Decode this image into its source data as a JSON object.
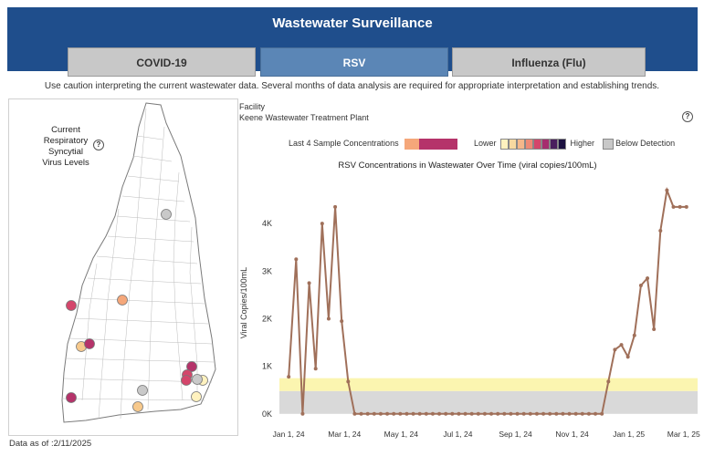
{
  "header": {
    "title": "Wastewater Surveillance",
    "tabs": [
      {
        "label": "COVID-19",
        "active": false
      },
      {
        "label": "RSV",
        "active": true
      },
      {
        "label": "Influenza (Flu)",
        "active": false
      }
    ]
  },
  "notice": "Use caution interpreting the current wastewater data.  Several months of data analysis are required for appropriate interpretation and establishing trends.",
  "map": {
    "title_lines": [
      "Current",
      "Respiratory",
      "Syncytial",
      "Virus Levels"
    ],
    "help_icon": "?",
    "data_as_of": "Data as of :2/11/2025",
    "sites": [
      {
        "color": "#c9c9c9"
      },
      {
        "color": "#f5a77a"
      },
      {
        "color": "#d4466b"
      },
      {
        "color": "#f7c98c"
      },
      {
        "color": "#b5336a"
      },
      {
        "color": "#b5336a"
      },
      {
        "color": "#d4466b"
      },
      {
        "color": "#d4466b"
      },
      {
        "color": "#fff2bf"
      },
      {
        "color": "#c9c9c9"
      },
      {
        "color": "#c9c9c9"
      },
      {
        "color": "#fff2bf"
      },
      {
        "color": "#f7c98c"
      },
      {
        "color": "#b5336a"
      }
    ]
  },
  "facility": {
    "label": "Facility",
    "name": "Keene Wastewater Treatment Plant"
  },
  "legend": {
    "last4_label": "Last 4 Sample Concentrations",
    "last4_colors": [
      "#f5a77a",
      "#b5336a",
      "#b5336a",
      "#b5336a"
    ],
    "lower_label": "Lower",
    "higher_label": "Higher",
    "scale_colors": [
      "#fff2bf",
      "#f7d9a0",
      "#f5b78a",
      "#ee8a75",
      "#d4466b",
      "#a62d6e",
      "#4a1f5e",
      "#1c1140"
    ],
    "below_detection_label": "Below Detection",
    "below_detection_color": "#c8c8c8"
  },
  "chart_data": {
    "type": "line",
    "title": "RSV Concentrations in Wastewater Over Time (viral copies/100mL)",
    "ylabel": "Viral Copies/100mL",
    "xlabel": "",
    "ylim": [
      -100,
      5000
    ],
    "yticks": [
      {
        "value": 0,
        "label": "0K"
      },
      {
        "value": 1000,
        "label": "1K"
      },
      {
        "value": 2000,
        "label": "2K"
      },
      {
        "value": 3000,
        "label": "3K"
      },
      {
        "value": 4000,
        "label": "4K"
      }
    ],
    "xlim_days": [
      -10,
      440
    ],
    "xticks": [
      {
        "day": 0,
        "label": "Jan 1, 24"
      },
      {
        "day": 60,
        "label": "Mar 1, 24"
      },
      {
        "day": 121,
        "label": "May 1, 24"
      },
      {
        "day": 182,
        "label": "Jul 1, 24"
      },
      {
        "day": 244,
        "label": "Sep 1, 24"
      },
      {
        "day": 305,
        "label": "Nov 1, 24"
      },
      {
        "day": 366,
        "label": "Jan 1, 25"
      },
      {
        "day": 425,
        "label": "Mar 1, 25"
      }
    ],
    "bands": [
      {
        "name": "Below Detection",
        "from": 0,
        "to": 480,
        "color": "#d9d9d9"
      },
      {
        "name": "Low",
        "from": 480,
        "to": 750,
        "color": "#fbf5b0"
      }
    ],
    "line_color": "#a0705a",
    "series": [
      {
        "name": "Keene WWTP",
        "x": [
          0,
          8,
          15,
          22,
          29,
          36,
          43,
          50,
          57,
          64,
          71,
          78,
          85,
          92,
          99,
          106,
          113,
          120,
          127,
          134,
          141,
          148,
          155,
          162,
          169,
          176,
          183,
          190,
          197,
          204,
          211,
          218,
          225,
          232,
          239,
          246,
          253,
          260,
          267,
          274,
          281,
          288,
          295,
          302,
          309,
          316,
          323,
          330,
          337,
          344,
          351,
          358,
          365,
          372,
          379,
          386,
          393,
          400,
          407,
          414,
          421,
          428
        ],
        "y": [
          780,
          3250,
          0,
          2750,
          950,
          4000,
          2000,
          4350,
          1950,
          680,
          0,
          0,
          0,
          0,
          0,
          0,
          0,
          0,
          0,
          0,
          0,
          0,
          0,
          0,
          0,
          0,
          0,
          0,
          0,
          0,
          0,
          0,
          0,
          0,
          0,
          0,
          0,
          0,
          0,
          0,
          0,
          0,
          0,
          0,
          0,
          0,
          0,
          0,
          0,
          680,
          1350,
          1450,
          1200,
          1650,
          2700,
          2850,
          1780,
          3850,
          4700,
          4350,
          4350,
          4350
        ]
      }
    ]
  }
}
